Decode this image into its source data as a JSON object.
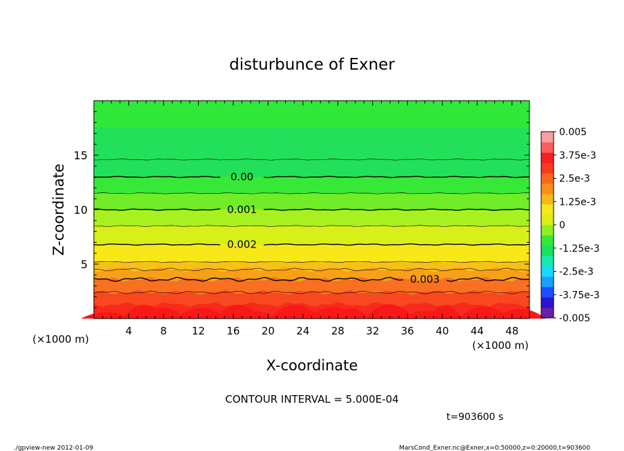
{
  "chart_data": {
    "type": "contour",
    "title": "disturbunce of Exner",
    "xlabel": "X-coordinate",
    "ylabel": "Z-coordinate",
    "x_unit": "(×1000 m)",
    "z_unit": "(×1000 m)",
    "xlim": [
      0,
      50
    ],
    "zlim": [
      0,
      20
    ],
    "x_ticks": [
      4,
      8,
      12,
      16,
      20,
      24,
      28,
      32,
      36,
      40,
      44,
      48
    ],
    "z_ticks": [
      5,
      10,
      15
    ],
    "contour_interval_text": "CONTOUR INTERVAL = 5.000E-04",
    "time_text": "t=903600 s",
    "contour_labels": [
      {
        "text": "0.00",
        "value": 0.0,
        "x": 17,
        "z": 13.0
      },
      {
        "text": "0.001",
        "value": 0.001,
        "x": 17,
        "z": 10.0
      },
      {
        "text": "0.002",
        "value": 0.002,
        "x": 17,
        "z": 6.8
      },
      {
        "text": "0.003",
        "value": 0.003,
        "x": 38,
        "z": 3.6
      }
    ],
    "colorbar": {
      "labels": [
        "0.005",
        "3.75e-3",
        "2.5e-3",
        "1.25e-3",
        "0",
        "-1.25e-3",
        "-2.5e-3",
        "-3.75e-3",
        "-0.005"
      ],
      "min": -0.005,
      "max": 0.005,
      "colors": [
        "#6a1fa8",
        "#2a14d0",
        "#1a50ff",
        "#1aa0ff",
        "#18d8ff",
        "#18e8b0",
        "#18e060",
        "#38e838",
        "#90f020",
        "#d8f018",
        "#f8e818",
        "#f8b818",
        "#f89018",
        "#f86820",
        "#f83a20",
        "#f82020",
        "#f86060",
        "#f8a0a0"
      ]
    },
    "field_bands": [
      {
        "z": 20,
        "color": "#30e83a"
      },
      {
        "z": 17.5,
        "color": "#22e05a"
      },
      {
        "z": 13.0,
        "color": "#38e838"
      },
      {
        "z": 11.5,
        "color": "#70ec28"
      },
      {
        "z": 10.0,
        "color": "#a8f020"
      },
      {
        "z": 8.5,
        "color": "#d8f018"
      },
      {
        "z": 6.8,
        "color": "#f8e818"
      },
      {
        "z": 5.2,
        "color": "#f8c018"
      },
      {
        "z": 4.5,
        "color": "#f8a018"
      },
      {
        "z": 3.6,
        "color": "#f87020"
      },
      {
        "z": 2.4,
        "color": "#f84820"
      },
      {
        "z": 1.3,
        "color": "#f82a1c"
      }
    ]
  },
  "footer": {
    "left": "./gpview-new  2012-01-09",
    "right": "MarsCond_Exner.nc@Exner,x=0:50000,z=0:20000,t=903600"
  }
}
